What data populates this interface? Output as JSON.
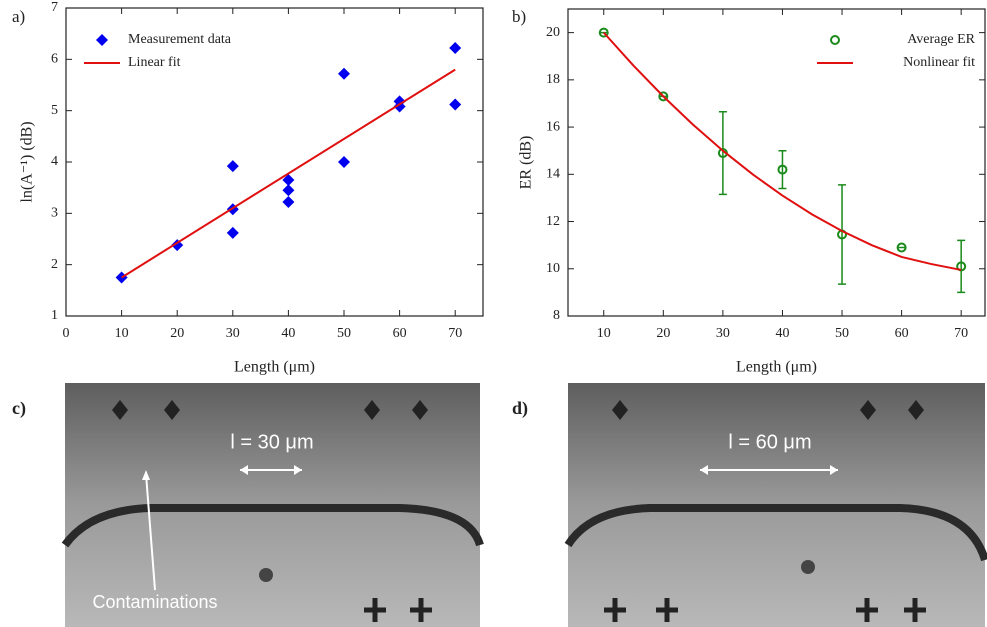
{
  "chart_data": [
    {
      "type": "scatter",
      "panel_label": "a)",
      "xlabel": "Length (μm)",
      "ylabel": "ln(A⁻¹) (dB)",
      "xlim": [
        0,
        75
      ],
      "xticks": [
        0,
        10,
        20,
        30,
        40,
        50,
        60,
        70
      ],
      "ylim": [
        1,
        7
      ],
      "yticks": [
        1,
        2,
        3,
        4,
        5,
        6,
        7
      ],
      "legend": "upper left",
      "series": [
        {
          "name": "Measurement data",
          "color": "#0000ee",
          "marker": "diamond",
          "x": [
            10,
            20,
            30,
            30,
            30,
            40,
            40,
            40,
            50,
            50,
            60,
            60,
            70,
            70
          ],
          "values": [
            1.75,
            2.38,
            3.92,
            3.08,
            2.62,
            3.65,
            3.45,
            3.22,
            5.72,
            4.0,
            5.18,
            5.08,
            6.22,
            5.12
          ]
        },
        {
          "name": "Linear fit",
          "color": "#e01010",
          "marker": "line",
          "x": [
            10,
            70
          ],
          "values": [
            1.75,
            5.8
          ]
        }
      ]
    },
    {
      "type": "scatter",
      "panel_label": "b)",
      "xlabel": "Length (μm)",
      "ylabel": "ER (dB)",
      "xlim": [
        4,
        74
      ],
      "xticks": [
        10,
        20,
        30,
        40,
        50,
        60,
        70
      ],
      "ylim": [
        8,
        21
      ],
      "yticks": [
        8,
        10,
        12,
        14,
        16,
        18,
        20
      ],
      "legend": "upper right",
      "series": [
        {
          "name": "Average ER",
          "color": "#1a8a1a",
          "marker": "circle",
          "x": [
            10,
            20,
            30,
            40,
            50,
            60,
            70
          ],
          "values": [
            20.0,
            17.3,
            14.9,
            14.2,
            11.45,
            10.9,
            10.1
          ],
          "errors": [
            0,
            0,
            1.75,
            0.8,
            2.1,
            0,
            1.1
          ]
        },
        {
          "name": "Nonlinear fit",
          "color": "#e01010",
          "marker": "line",
          "x": [
            10,
            15,
            20,
            25,
            30,
            35,
            40,
            45,
            50,
            55,
            60,
            65,
            70
          ],
          "values": [
            20.0,
            18.6,
            17.3,
            16.1,
            15.0,
            14.0,
            13.1,
            12.3,
            11.6,
            11.0,
            10.5,
            10.2,
            9.95
          ]
        }
      ]
    }
  ],
  "images": [
    {
      "label": "c)",
      "annotation": "l = 30 μm",
      "callout": "Contaminations"
    },
    {
      "label": "d)",
      "annotation": "l = 60 μm"
    }
  ]
}
